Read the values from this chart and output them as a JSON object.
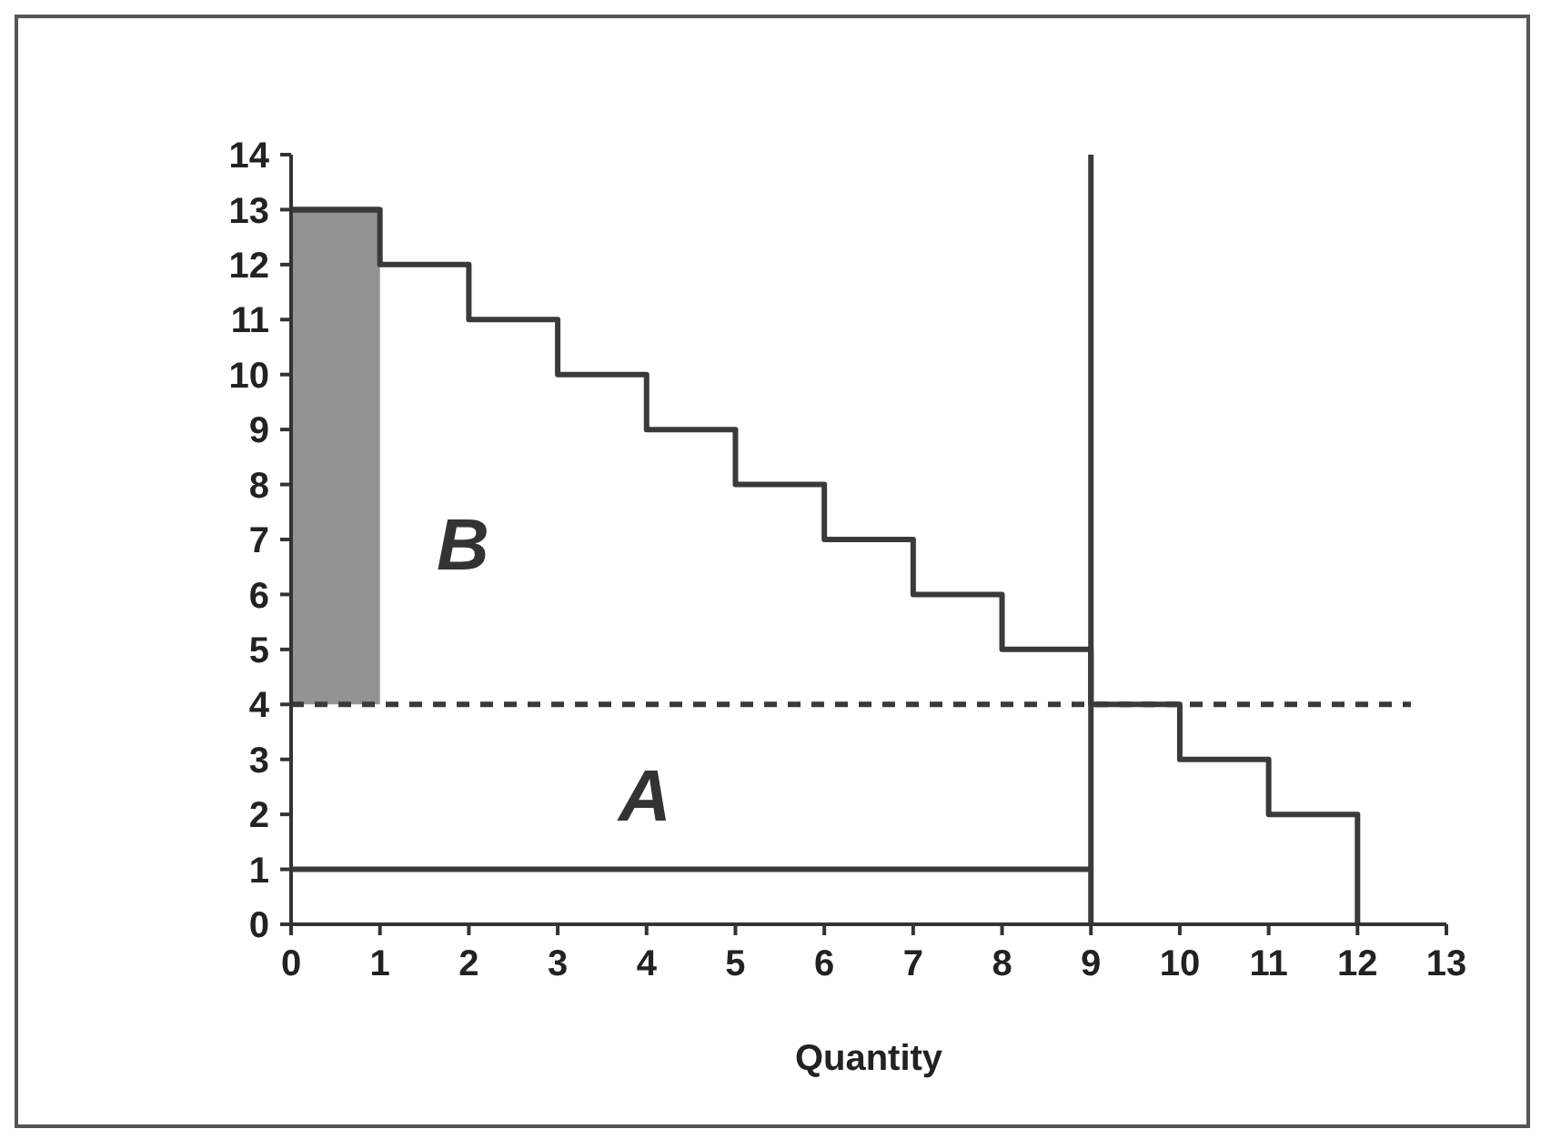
{
  "chart_data": {
    "type": "step",
    "xlabel": "Quantity",
    "xlim": [
      0,
      13
    ],
    "xticks": [
      0,
      1,
      2,
      3,
      4,
      5,
      6,
      7,
      8,
      9,
      10,
      11,
      12,
      13
    ],
    "ylim": [
      0,
      14
    ],
    "yticks": [
      0,
      1,
      2,
      3,
      4,
      5,
      6,
      7,
      8,
      9,
      10,
      11,
      12,
      13,
      14
    ],
    "series": [
      {
        "type": "line",
        "color": "#3a3a3a",
        "x": [
          0,
          1
        ],
        "values": [
          13,
          13
        ],
        "lower": [
          4,
          4
        ],
        "upper": [
          13,
          13
        ]
      },
      {
        "color": "#3a3a3a",
        "x": [
          0,
          1,
          2,
          3,
          4,
          5,
          6,
          7,
          8,
          9,
          10,
          11,
          12
        ],
        "values": [
          13,
          12,
          11,
          10,
          9,
          8,
          7,
          6,
          5,
          4,
          3,
          2,
          0
        ]
      },
      {
        "type": "line",
        "color": "#3a3a3a",
        "x": [
          0,
          9
        ],
        "values": [
          1,
          1
        ]
      },
      {
        "type": "line",
        "color": "#3a3a3a",
        "line_style": "dashed",
        "x": [
          0,
          12.6
        ],
        "values": [
          4,
          4
        ]
      }
    ],
    "ref_lines": [
      {
        "axis": "x",
        "value": 9,
        "color": "#3a3a3a"
      }
    ],
    "annotations": [
      "A",
      "B"
    ]
  }
}
